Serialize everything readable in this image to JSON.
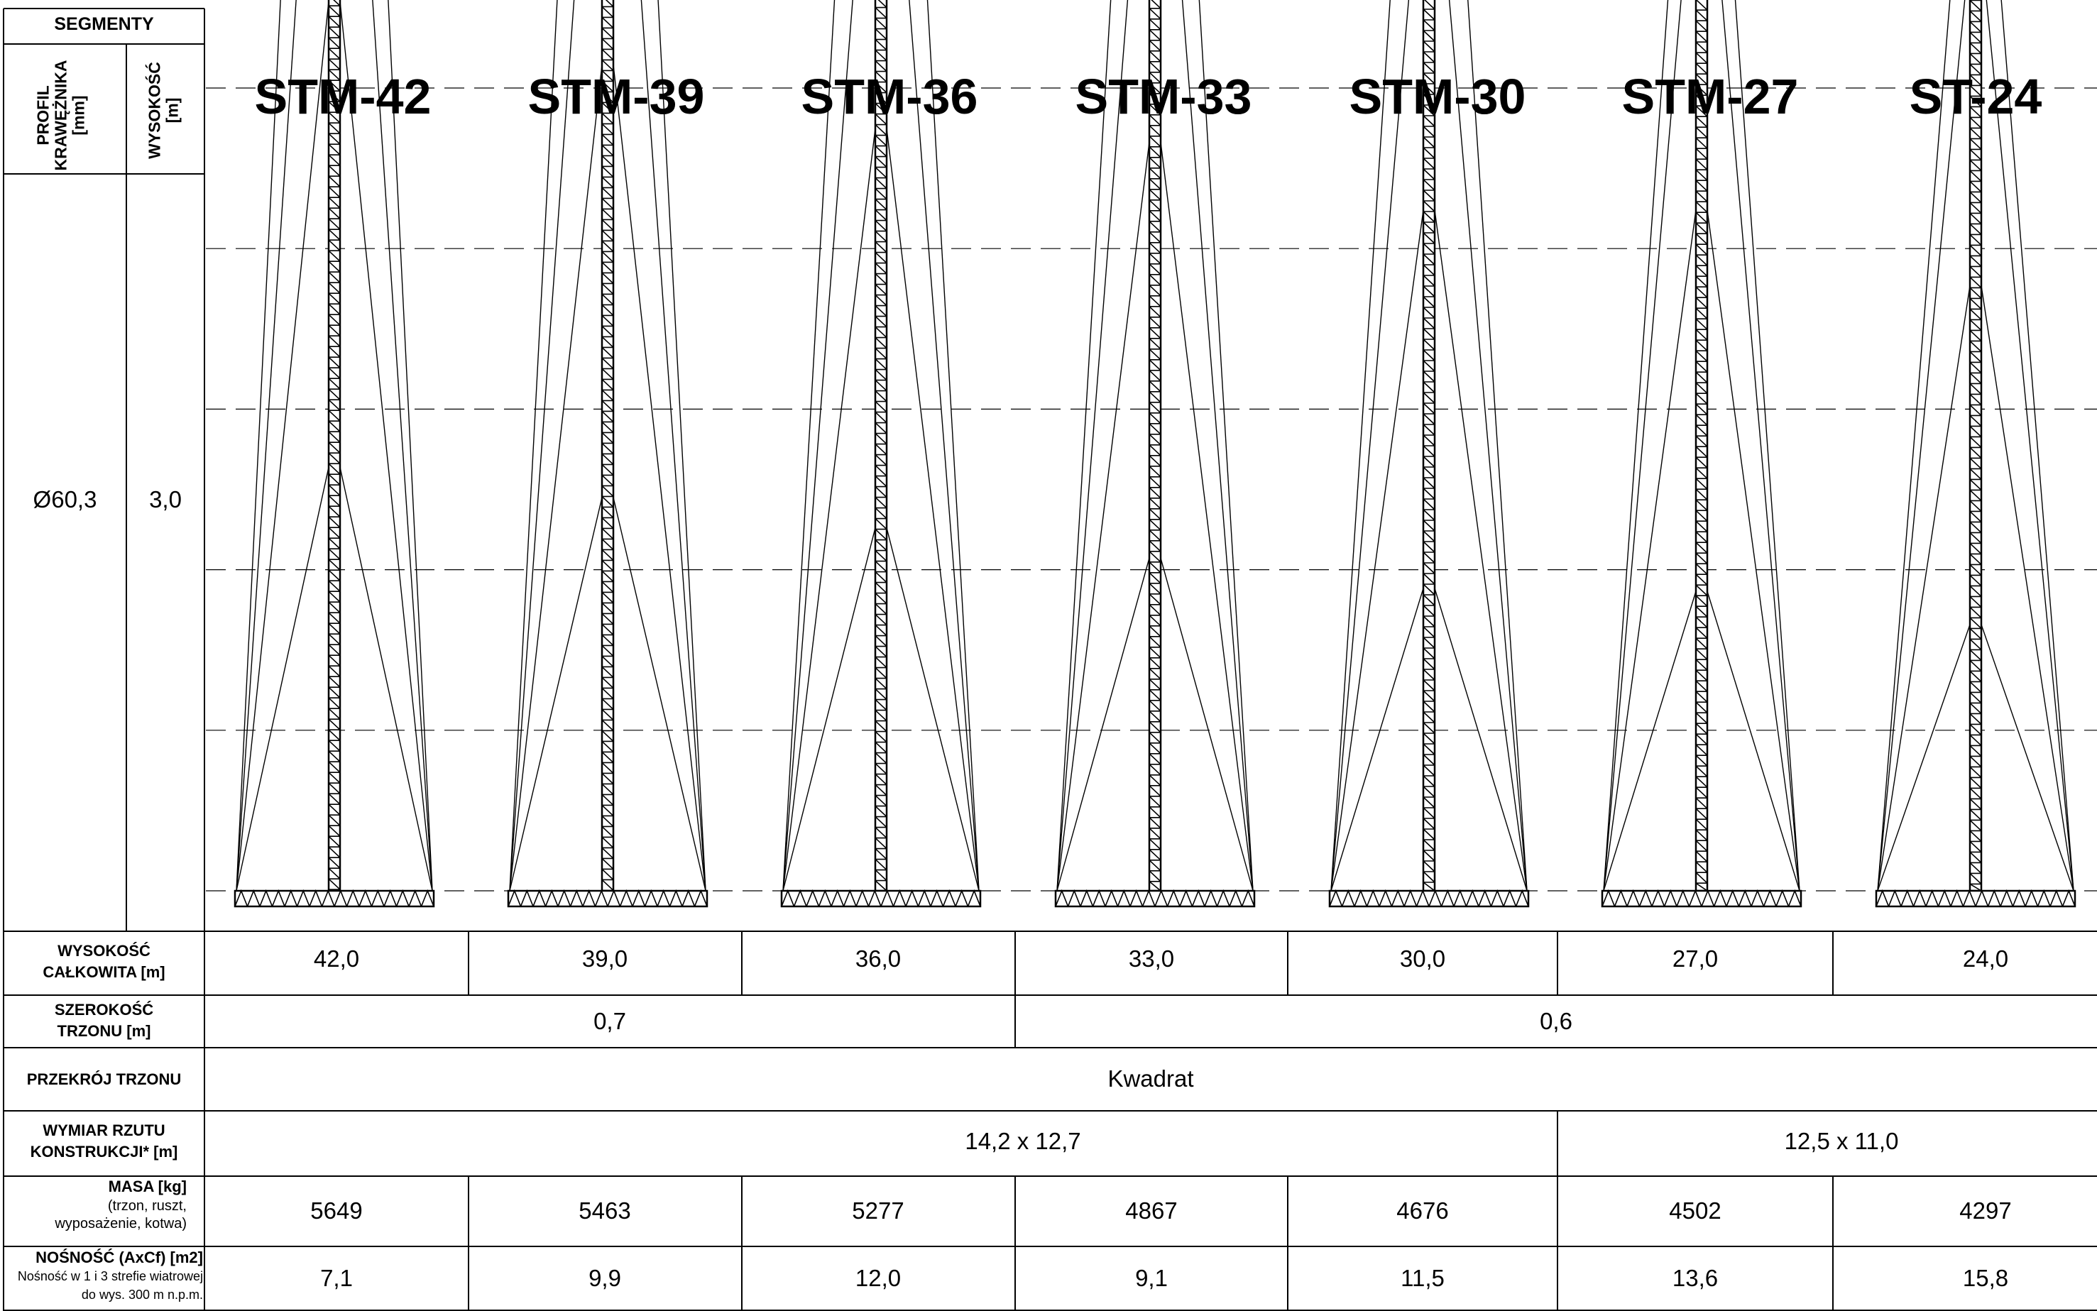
{
  "header": {
    "segmenty": "SEGMENTY",
    "profil": [
      "PROFIL",
      "KRAWĘŻNIKA",
      "[mm]"
    ],
    "wysokosc": [
      "WYSOKOŚĆ",
      "[m]"
    ],
    "profil_value": "Ø60,3",
    "wysokosc_value": "3,0"
  },
  "masts": [
    {
      "name": "STM-42",
      "height_m": 42.0
    },
    {
      "name": "STM-39",
      "height_m": 39.0
    },
    {
      "name": "STM-36",
      "height_m": 36.0
    },
    {
      "name": "STM-33",
      "height_m": 33.0
    },
    {
      "name": "STM-30",
      "height_m": 30.0
    },
    {
      "name": "STM-27",
      "height_m": 27.0
    },
    {
      "name": "ST-24",
      "height_m": 24.0
    }
  ],
  "rows": {
    "wysokosc_calkowita": {
      "label": [
        "WYSOKOŚĆ",
        "CAŁKOWITA [m]"
      ],
      "values": [
        "42,0",
        "39,0",
        "36,0",
        "33,0",
        "30,0",
        "27,0",
        "24,0"
      ]
    },
    "szerokosc_trzonu": {
      "label": [
        "SZEROKOŚĆ",
        "TRZONU [m]"
      ],
      "groups": [
        {
          "value": "0,7"
        },
        {
          "value": "0,6"
        }
      ]
    },
    "przekroj_trzonu": {
      "label": "PRZEKRÓJ TRZONU",
      "value": "Kwadrat"
    },
    "wymiar_rzutu": {
      "label": [
        "WYMIAR RZUTU",
        "KONSTRUKCJI* [m]"
      ],
      "groups": [
        {
          "value": "14,2 x 12,7"
        },
        {
          "value": "12,5 x 11,0"
        }
      ]
    },
    "masa": {
      "label": "MASA [kg]",
      "sublabel": [
        "(trzon, ruszt,",
        "wyposażenie, kotwa)"
      ],
      "values": [
        "5649",
        "5463",
        "5277",
        "4867",
        "4676",
        "4502",
        "4297"
      ]
    },
    "nosnosc": {
      "label": "NOŚNOŚĆ (AxCf) [m2]",
      "sublabel": [
        "Nośność w 1 i 3 strefie wiatrowej",
        "do wys. 300 m n.p.m."
      ],
      "values": [
        "7,1",
        "9,9",
        "12,0",
        "9,1",
        "11,5",
        "13,6",
        "15,8"
      ]
    }
  }
}
